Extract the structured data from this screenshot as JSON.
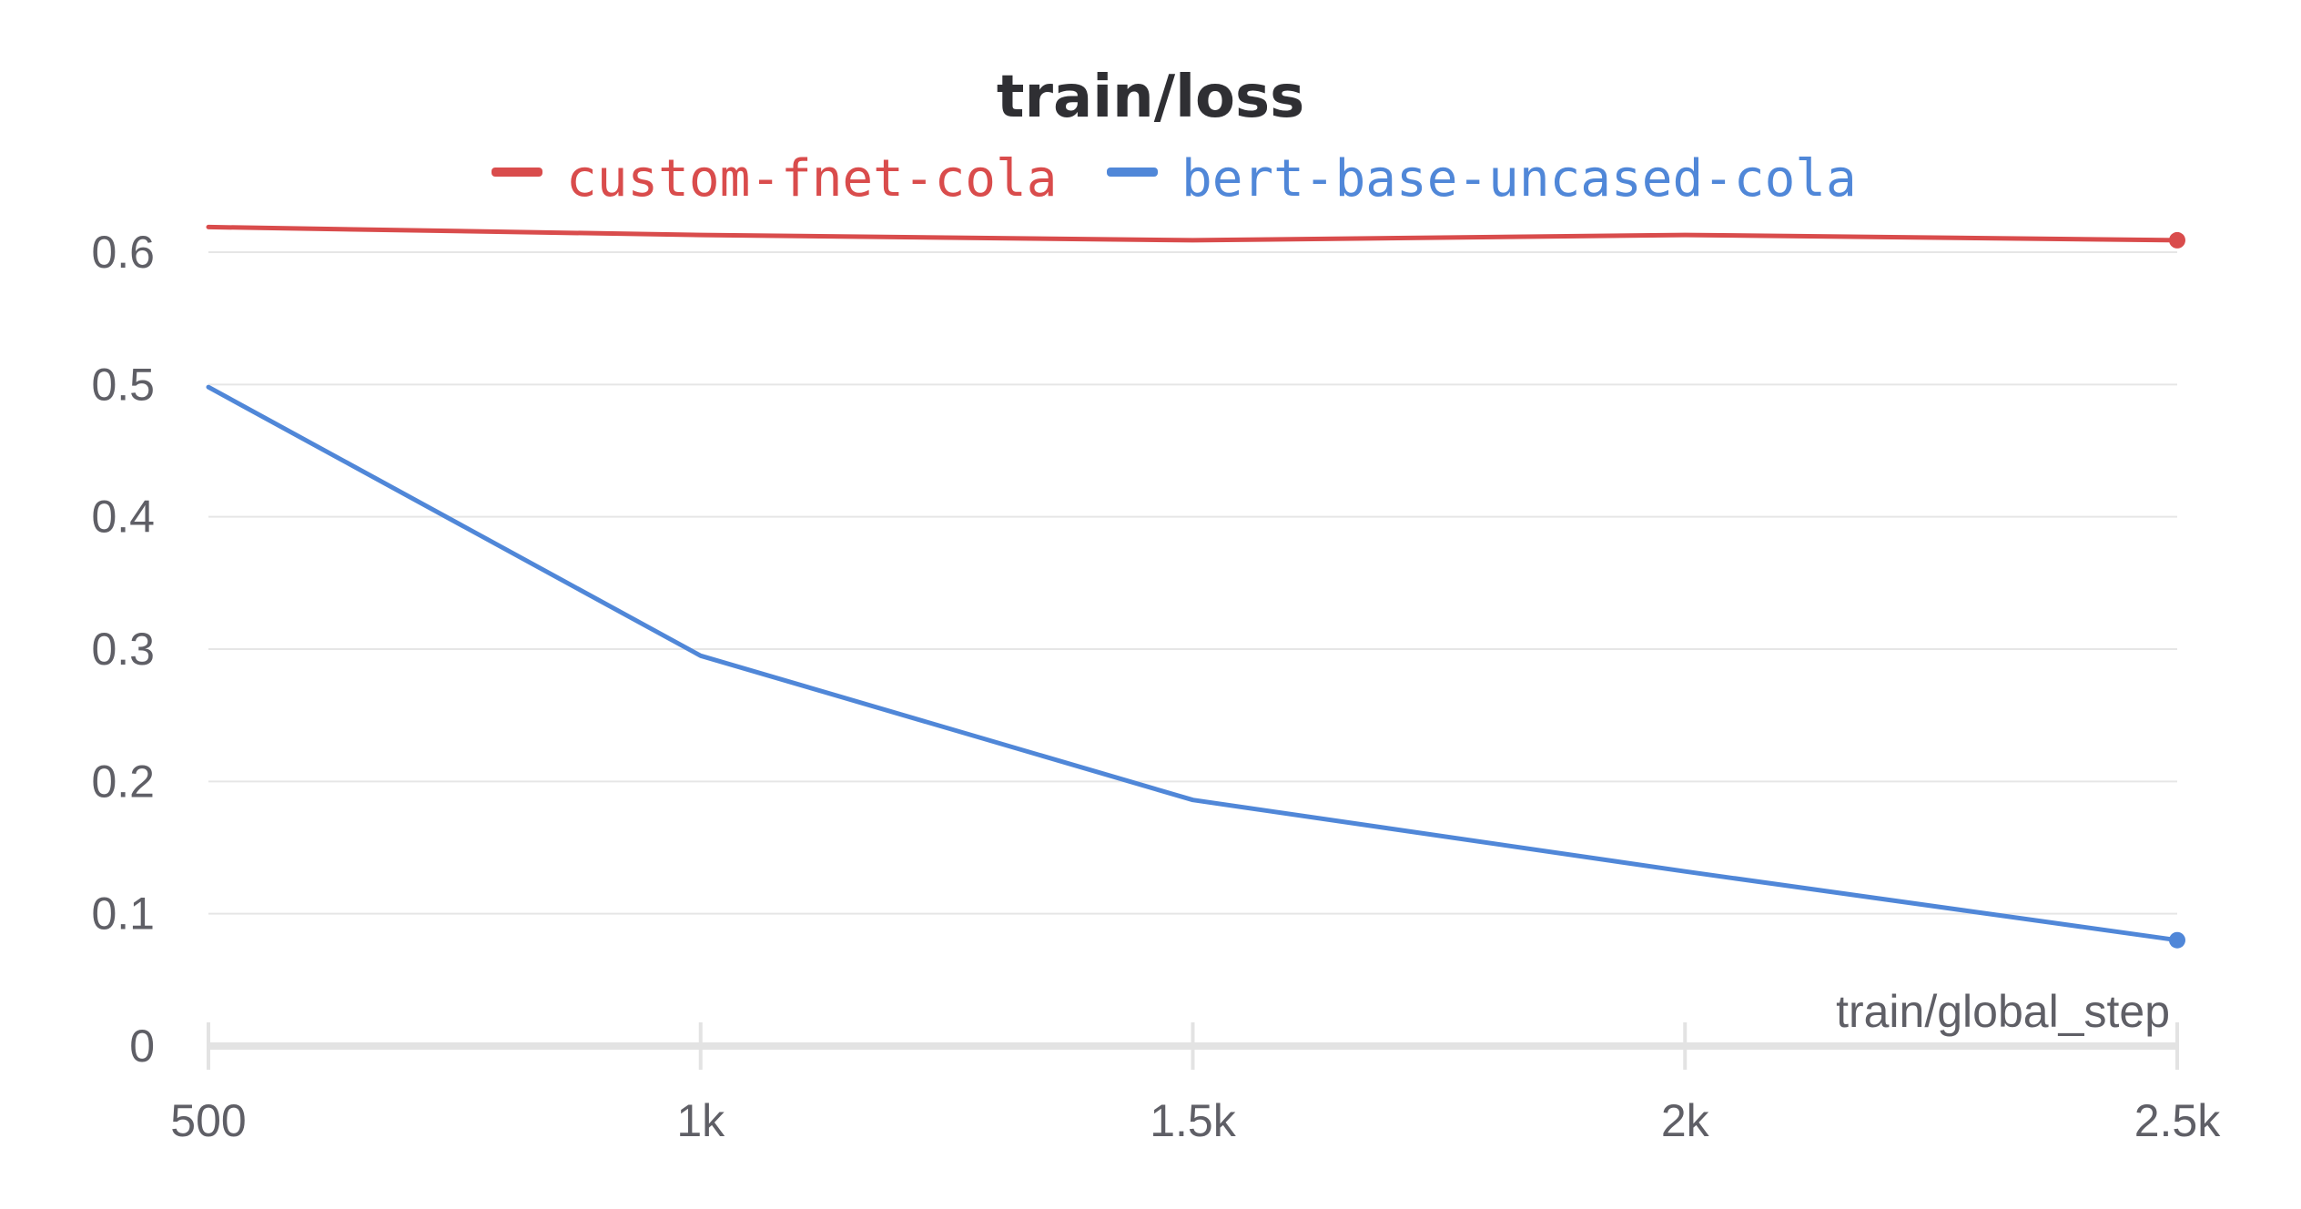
{
  "chart_data": {
    "type": "line",
    "title": "train/loss",
    "xlabel": "train/global_step",
    "ylabel": "",
    "xlim": [
      500,
      2500
    ],
    "ylim": [
      0,
      0.6
    ],
    "x_ticks": [
      500,
      1000,
      1500,
      2000,
      2500
    ],
    "x_tick_labels": [
      "500",
      "1k",
      "1.5k",
      "2k",
      "2.5k"
    ],
    "y_ticks": [
      0,
      0.1,
      0.2,
      0.3,
      0.4,
      0.5,
      0.6
    ],
    "y_tick_labels": [
      "0",
      "0.1",
      "0.2",
      "0.3",
      "0.4",
      "0.5",
      "0.6"
    ],
    "grid": true,
    "legend_position": "top-center",
    "series": [
      {
        "name": "custom-fnet-cola",
        "color": "#d94c4c",
        "x": [
          500,
          1000,
          1500,
          2000,
          2500
        ],
        "values": [
          0.619,
          0.613,
          0.609,
          0.613,
          0.609
        ]
      },
      {
        "name": "bert-base-uncased-cola",
        "color": "#5087d8",
        "x": [
          500,
          1000,
          1500,
          2000,
          2500
        ],
        "values": [
          0.498,
          0.295,
          0.186,
          0.132,
          0.08
        ]
      }
    ]
  }
}
